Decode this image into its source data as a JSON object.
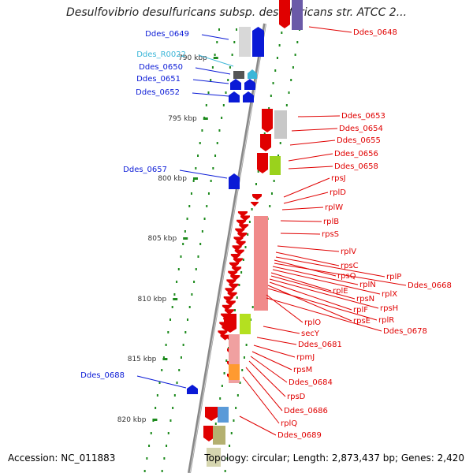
{
  "title": "Desulfovibrio desulfuricans subsp. desulfuricans str. ATCC 2...",
  "footer": {
    "accession": "Accession: NC_011883",
    "topology": "Topology: circular; Length: 2,873,437 bp; Genes: 2,420"
  },
  "colors": {
    "forward": "#0a1ad6",
    "reverse": "#e00000",
    "rna": "#3bb6d8",
    "backbone": "#888888",
    "ticks": "#1c8a1c"
  },
  "scale_labels": [
    "790 kbp",
    "795 kbp",
    "800 kbp",
    "805 kbp",
    "810 kbp",
    "815 kbp",
    "820 kbp"
  ],
  "left_labels": [
    {
      "text": "Ddes_0649",
      "kind": "forward"
    },
    {
      "text": "Ddes_R0022",
      "kind": "rna"
    },
    {
      "text": "Ddes_0650",
      "kind": "forward"
    },
    {
      "text": "Ddes_0651",
      "kind": "forward"
    },
    {
      "text": "Ddes_0652",
      "kind": "forward"
    },
    {
      "text": "Ddes_0657",
      "kind": "forward"
    },
    {
      "text": "Ddes_0688",
      "kind": "forward"
    }
  ],
  "right_labels": [
    "Ddes_0648",
    "Ddes_0653",
    "Ddes_0654",
    "Ddes_0655",
    "Ddes_0656",
    "Ddes_0658",
    "rpsJ",
    "rplD",
    "rplW",
    "rplB",
    "rpsS",
    "rplV",
    "rpsC",
    "rplP",
    "rpsQ",
    "Ddes_0668",
    "rplN",
    "rplX",
    "rplE",
    "rpsN",
    "rpsH",
    "rplF",
    "rpsE",
    "rplR",
    "rplO",
    "Ddes_0678",
    "secY",
    "Ddes_0681",
    "rpmJ",
    "rpsM",
    "Ddes_0684",
    "rpsD",
    "Ddes_0686",
    "rplQ",
    "Ddes_0689"
  ]
}
